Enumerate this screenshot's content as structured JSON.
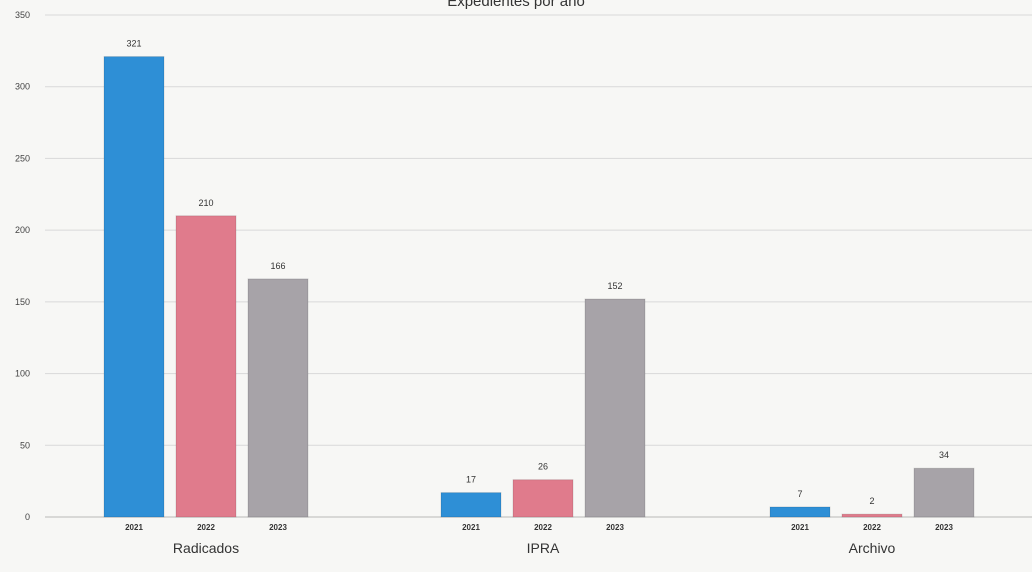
{
  "chart_data": {
    "type": "bar",
    "title": "Expedientes por año",
    "xlabel": "",
    "ylabel": "",
    "ylim": [
      0,
      350
    ],
    "yticks": [
      0,
      50,
      100,
      150,
      200,
      250,
      300,
      350
    ],
    "grid": true,
    "legend": "none",
    "groups": [
      {
        "name": "Radicados",
        "bars": [
          {
            "year": "2021",
            "value": 321,
            "color": "#2e8fd6"
          },
          {
            "year": "2022",
            "value": 210,
            "color": "#e07b8c"
          },
          {
            "year": "2023",
            "value": 166,
            "color": "#a7a3a8"
          }
        ]
      },
      {
        "name": "IPRA",
        "bars": [
          {
            "year": "2021",
            "value": 17,
            "color": "#2e8fd6"
          },
          {
            "year": "2022",
            "value": 26,
            "color": "#e07b8c"
          },
          {
            "year": "2023",
            "value": 152,
            "color": "#a7a3a8"
          }
        ]
      },
      {
        "name": "Archivo",
        "bars": [
          {
            "year": "2021",
            "value": 7,
            "color": "#2e8fd6"
          },
          {
            "year": "2022",
            "value": 2,
            "color": "#e07b8c"
          },
          {
            "year": "2023",
            "value": 34,
            "color": "#a7a3a8"
          }
        ]
      }
    ]
  }
}
